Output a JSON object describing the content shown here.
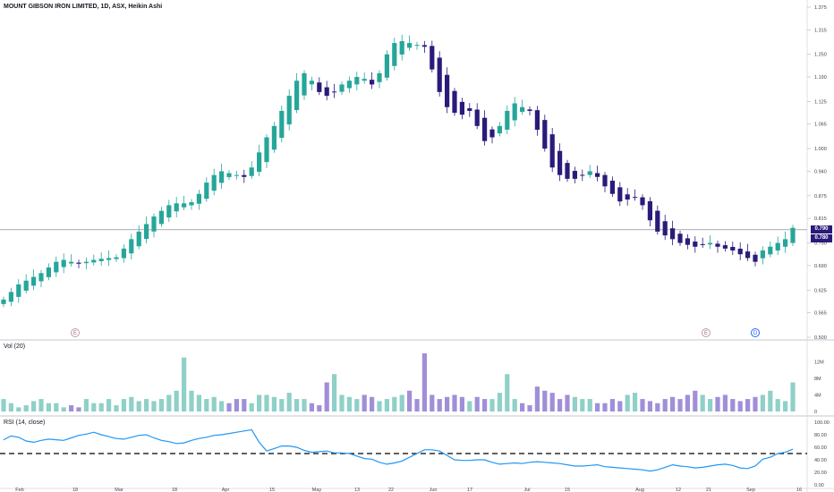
{
  "header": {
    "title": "MOUNT GIBSON IRON LIMITED, 1D, ASX, Heikin Ashi"
  },
  "panes": {
    "volume_label": "Vol (20)",
    "rsi_label": "RSI (14, close)"
  },
  "badges": {
    "upper": "0.790",
    "lower": "0.780"
  },
  "events": [
    {
      "label": "E",
      "style": "pink"
    },
    {
      "label": "E",
      "style": "pink"
    },
    {
      "label": "D",
      "style": "blue"
    }
  ],
  "colors": {
    "up": "#26a69a",
    "down": "#2a1b7a",
    "vol_up": "#8fd0c8",
    "vol_down": "#a08fd8",
    "rsi_line": "#2196f3",
    "last_price_line": "#787b86"
  },
  "chart_data": {
    "type": "candlestick",
    "style": "Heikin Ashi",
    "price_axis": {
      "ticks": [
        "1.375",
        "1.315",
        "1.250",
        "1.190",
        "1.125",
        "1.065",
        "1.000",
        "0.940",
        "0.875",
        "0.815",
        "0.750",
        "0.690",
        "0.625",
        "0.565",
        "0.500"
      ],
      "range": [
        0.5,
        1.375
      ]
    },
    "volume_axis": {
      "ticks": [
        "12M",
        "8M",
        "4M",
        "0"
      ],
      "range": [
        0,
        14
      ]
    },
    "rsi_axis": {
      "ticks": [
        "100.00",
        "80.00",
        "60.00",
        "40.00",
        "20.00",
        "0.00"
      ],
      "range": [
        0,
        100
      ],
      "reference_line": 50
    },
    "time_axis": {
      "labels": [
        "Feb",
        "18",
        "Mar",
        "18",
        "Apr",
        "15",
        "May",
        "13",
        "22",
        "Jun",
        "17",
        "Jul",
        "15",
        "Aug",
        "12",
        "21",
        "Sep",
        "16"
      ]
    },
    "last_price": 0.785,
    "close": [
      0.6,
      0.62,
      0.64,
      0.65,
      0.66,
      0.67,
      0.685,
      0.7,
      0.705,
      0.7,
      0.695,
      0.7,
      0.705,
      0.708,
      0.71,
      0.712,
      0.735,
      0.76,
      0.78,
      0.8,
      0.82,
      0.835,
      0.85,
      0.855,
      0.855,
      0.858,
      0.88,
      0.91,
      0.93,
      0.94,
      0.935,
      0.93,
      0.925,
      0.95,
      0.99,
      1.03,
      1.06,
      1.1,
      1.14,
      1.18,
      1.2,
      1.18,
      1.15,
      1.14,
      1.15,
      1.17,
      1.18,
      1.19,
      1.185,
      1.17,
      1.2,
      1.25,
      1.28,
      1.285,
      1.28,
      1.275,
      1.27,
      1.21,
      1.15,
      1.11,
      1.095,
      1.09,
      1.1,
      1.06,
      1.02,
      1.03,
      1.06,
      1.1,
      1.12,
      1.11,
      1.1,
      1.05,
      1.0,
      0.95,
      0.93,
      0.92,
      0.92,
      0.93,
      0.94,
      0.925,
      0.9,
      0.88,
      0.86,
      0.865,
      0.87,
      0.85,
      0.81,
      0.78,
      0.77,
      0.76,
      0.75,
      0.745,
      0.74,
      0.745,
      0.75,
      0.74,
      0.735,
      0.73,
      0.72,
      0.71,
      0.7,
      0.73,
      0.74,
      0.75,
      0.76,
      0.79
    ],
    "volume": [
      3,
      2,
      1,
      1.5,
      2.5,
      3,
      2,
      2,
      1,
      1.5,
      1,
      3,
      2,
      2,
      3,
      1.5,
      3,
      3.5,
      2.5,
      3,
      2.5,
      3,
      4,
      5,
      13,
      5,
      4,
      3,
      3.5,
      2.5,
      2,
      3,
      3,
      2,
      4,
      4,
      3.5,
      3,
      4.5,
      3,
      3,
      2,
      1.5,
      7,
      9,
      4,
      3.5,
      3,
      4,
      3.5,
      2.5,
      3,
      3.5,
      4,
      5,
      3,
      14,
      4,
      3,
      3.5,
      4,
      3.5,
      2.5,
      3.5,
      3,
      3,
      4.5,
      9,
      3,
      2,
      1.5,
      6,
      5,
      4.5,
      3,
      4,
      3.5,
      3,
      3,
      2,
      2,
      3,
      2.5,
      4,
      4.5,
      3,
      2.5,
      2,
      3,
      3.5,
      3,
      4,
      5,
      4,
      3,
      3.5,
      4,
      3,
      2.5,
      3,
      3.5,
      4,
      5,
      3,
      2.5,
      7
    ],
    "rsi": [
      72,
      78,
      76,
      70,
      68,
      71,
      73,
      72,
      71,
      75,
      79,
      81,
      84,
      80,
      77,
      74,
      73,
      76,
      79,
      80,
      75,
      71,
      69,
      66,
      67,
      71,
      74,
      76,
      79,
      80,
      82,
      84,
      86,
      88,
      68,
      54,
      58,
      62,
      62,
      60,
      55,
      52,
      53,
      54,
      51,
      51,
      50,
      46,
      42,
      41,
      36,
      33,
      35,
      38,
      44,
      50,
      56,
      56,
      54,
      47,
      40,
      39,
      39,
      40,
      40,
      36,
      33,
      34,
      35,
      34,
      36,
      37,
      36,
      35,
      34,
      32,
      30,
      30,
      31,
      32,
      29,
      28,
      27,
      26,
      25,
      24,
      22,
      24,
      28,
      32,
      30,
      29,
      27,
      28,
      30,
      32,
      33,
      31,
      27,
      26,
      30,
      41,
      44,
      50,
      52,
      57
    ]
  }
}
